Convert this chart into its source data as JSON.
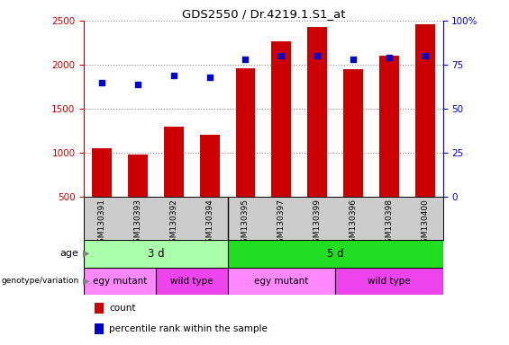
{
  "title": "GDS2550 / Dr.4219.1.S1_at",
  "samples": [
    "GSM130391",
    "GSM130393",
    "GSM130392",
    "GSM130394",
    "GSM130395",
    "GSM130397",
    "GSM130399",
    "GSM130396",
    "GSM130398",
    "GSM130400"
  ],
  "counts": [
    1050,
    975,
    1300,
    1200,
    1960,
    2270,
    2430,
    1950,
    2100,
    2460
  ],
  "percentile_ranks": [
    65,
    64,
    69,
    68,
    78,
    80,
    80,
    78,
    79,
    80
  ],
  "ylim_left": [
    500,
    2500
  ],
  "ylim_right": [
    0,
    100
  ],
  "yticks_left": [
    500,
    1000,
    1500,
    2000,
    2500
  ],
  "yticks_right": [
    0,
    25,
    50,
    75,
    100
  ],
  "bar_color": "#cc0000",
  "dot_color": "#0000cc",
  "bar_width": 0.55,
  "age_labels": [
    {
      "text": "3 d",
      "start": 0,
      "end": 4,
      "color": "#aaffaa"
    },
    {
      "text": "5 d",
      "start": 4,
      "end": 10,
      "color": "#22dd22"
    }
  ],
  "genotype_labels": [
    {
      "text": "egy mutant",
      "start": 0,
      "end": 2,
      "color": "#ff88ff"
    },
    {
      "text": "wild type",
      "start": 2,
      "end": 4,
      "color": "#ee44ee"
    },
    {
      "text": "egy mutant",
      "start": 4,
      "end": 7,
      "color": "#ff88ff"
    },
    {
      "text": "wild type",
      "start": 7,
      "end": 10,
      "color": "#ee44ee"
    }
  ],
  "legend_items": [
    {
      "label": "count",
      "color": "#cc0000"
    },
    {
      "label": "percentile rank within the sample",
      "color": "#0000cc"
    }
  ],
  "grid_color": "#888888",
  "axis_color_left": "#cc0000",
  "axis_color_right": "#0000cc",
  "background_color": "#ffffff",
  "tick_label_bg": "#cccccc",
  "tick_separator_x": 3.5,
  "n_samples": 10,
  "xlim": [
    -0.5,
    9.5
  ]
}
